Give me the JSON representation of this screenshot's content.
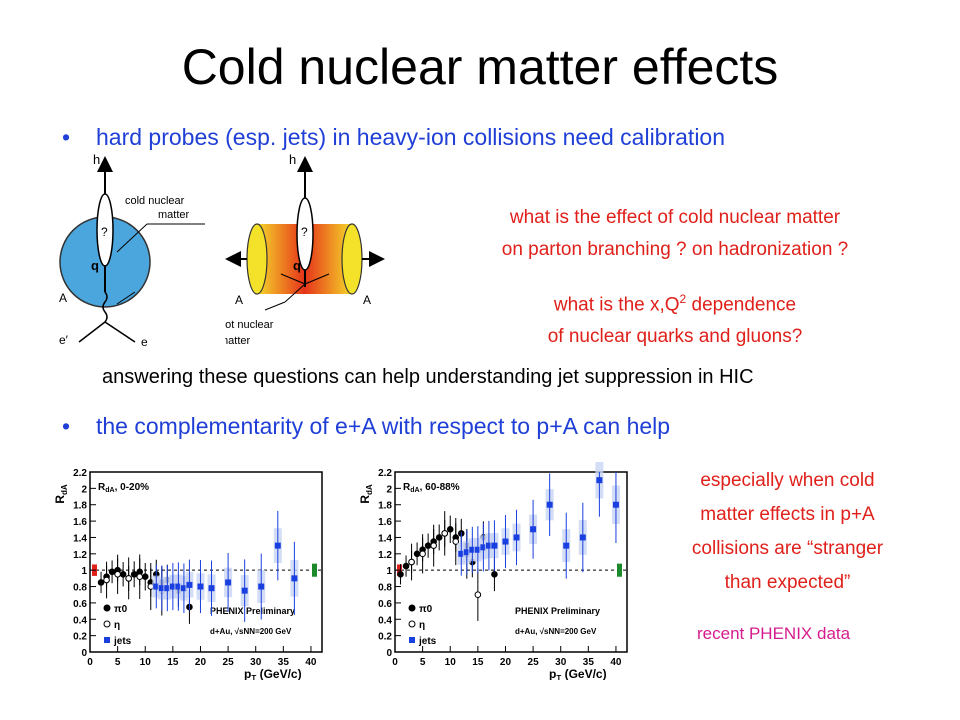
{
  "slide": {
    "title": "Cold nuclear matter effects",
    "bullet1": "hard probes (esp. jets) in heavy-ion collisions need calibration",
    "bullet2": "the complementarity of e+A with respect to p+A can help",
    "bullet_marker": "•",
    "question1_line1": "what is the effect of cold nuclear matter",
    "question1_line2": "on parton branching ? on hadronization ?",
    "question2_line1_a": "what is the x,Q",
    "question2_line1_sup": "2",
    "question2_line1_b": " dependence",
    "question2_line2": "of nuclear quarks and gluons?",
    "answer_line": "answering these questions can help understanding jet suppression in HIC",
    "note_line1": "especially when cold",
    "note_line2": "matter effects in p+A",
    "note_line3": "collisions are “stranger",
    "note_line4": "than expected”",
    "source_note": "recent PHENIX data"
  },
  "diagram_left": {
    "label_h": "h",
    "label_cold": "cold nuclear",
    "label_matter": "matter",
    "label_q": "q",
    "label_qmark": "?",
    "label_A": "A",
    "label_eprime": "e′",
    "label_e": "e",
    "colors": {
      "nucleus": "#4aa6dd"
    }
  },
  "diagram_right": {
    "label_h": "h",
    "label_q": "q",
    "label_qmark": "?",
    "label_A_left": "A",
    "label_A_right": "A",
    "label_hot": "hot nuclear",
    "label_matter": "matter",
    "colors": {
      "outer": "#f4e12a",
      "inner": "#e83a12"
    }
  },
  "chart_data": [
    {
      "type": "scatter",
      "panel_label": "R",
      "panel_label_sub": "dA",
      "panel_label_rest": ", 0-20%",
      "ylabel": "R",
      "ylabel_sub": "dA",
      "xlabel": "p",
      "xlabel_sub": "T",
      "xlabel_unit": "(GeV/c)",
      "xlim": [
        0,
        42
      ],
      "ylim": [
        0,
        2.2
      ],
      "x_ticks": [
        "0",
        "5",
        "10",
        "15",
        "20",
        "25",
        "30",
        "35",
        "40"
      ],
      "y_ticks": [
        "0",
        "0.2",
        "0.4",
        "0.6",
        "0.8",
        "1",
        "1.2",
        "1.4",
        "1.6",
        "1.8",
        "2",
        "2.2"
      ],
      "legend": [
        "π0",
        "η",
        "jets"
      ],
      "preliminary": "PHENIX Preliminary",
      "system": "d+Au, √sNN=200 GeV",
      "series": [
        {
          "name": "π0",
          "x": [
            2,
            3,
            4,
            5,
            6,
            7,
            8,
            9,
            10,
            11,
            12,
            13,
            14,
            16,
            18
          ],
          "y": [
            0.85,
            0.92,
            0.98,
            1.0,
            0.95,
            0.9,
            0.95,
            0.98,
            0.92,
            0.85,
            0.95,
            0.85,
            0.88,
            0.75,
            0.55
          ]
        },
        {
          "name": "η",
          "x": [
            3,
            5,
            7,
            9,
            11,
            13
          ],
          "y": [
            0.88,
            0.95,
            0.9,
            0.92,
            0.8,
            0.75
          ]
        },
        {
          "name": "jets",
          "x": [
            12,
            13,
            14,
            15,
            16,
            17,
            18,
            20,
            22,
            25,
            28,
            31,
            34,
            37
          ],
          "y": [
            0.8,
            0.78,
            0.78,
            0.8,
            0.8,
            0.78,
            0.82,
            0.8,
            0.78,
            0.85,
            0.75,
            0.8,
            1.3,
            0.9
          ]
        }
      ]
    },
    {
      "type": "scatter",
      "panel_label": "R",
      "panel_label_sub": "dA",
      "panel_label_rest": ", 60-88%",
      "ylabel": "R",
      "ylabel_sub": "dA",
      "xlabel": "p",
      "xlabel_sub": "T",
      "xlabel_unit": "(GeV/c)",
      "xlim": [
        0,
        42
      ],
      "ylim": [
        0,
        2.2
      ],
      "x_ticks": [
        "0",
        "5",
        "10",
        "15",
        "20",
        "25",
        "30",
        "35",
        "40"
      ],
      "y_ticks": [
        "0",
        "0.2",
        "0.4",
        "0.6",
        "0.8",
        "1",
        "1.2",
        "1.4",
        "1.6",
        "1.8",
        "2",
        "2.2"
      ],
      "legend": [
        "π0",
        "η",
        "jets"
      ],
      "preliminary": "PHENIX Preliminary",
      "system": "d+Au, √sNN=200 GeV",
      "series": [
        {
          "name": "π0",
          "x": [
            1,
            2,
            3,
            4,
            5,
            6,
            7,
            8,
            9,
            10,
            11,
            12,
            13,
            14,
            16,
            18
          ],
          "y": [
            0.95,
            1.05,
            1.1,
            1.2,
            1.25,
            1.3,
            1.35,
            1.4,
            1.45,
            1.5,
            1.4,
            1.45,
            1.3,
            1.1,
            1.4,
            0.95
          ]
        },
        {
          "name": "η",
          "x": [
            3,
            5,
            7,
            9,
            11,
            13,
            15
          ],
          "y": [
            1.1,
            1.2,
            1.3,
            1.45,
            1.35,
            1.2,
            0.7
          ]
        },
        {
          "name": "jets",
          "x": [
            12,
            13,
            14,
            15,
            16,
            17,
            18,
            20,
            22,
            25,
            28,
            31,
            34,
            37,
            40
          ],
          "y": [
            1.2,
            1.22,
            1.25,
            1.25,
            1.28,
            1.3,
            1.3,
            1.35,
            1.4,
            1.5,
            1.8,
            1.3,
            1.4,
            2.1,
            1.8
          ]
        }
      ]
    }
  ]
}
